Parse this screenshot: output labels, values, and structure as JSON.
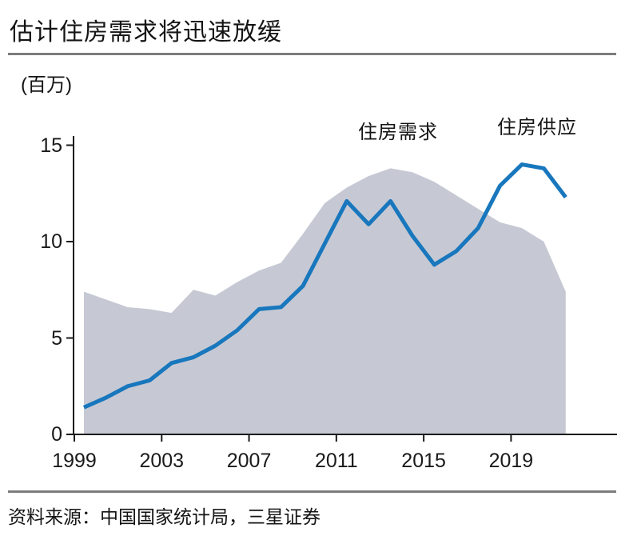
{
  "header": {
    "title": "估计住房需求将迅速放缓"
  },
  "footer": {
    "source": "资料来源：中国国家统计局，三星证券"
  },
  "chart_data": {
    "type": "area+line",
    "title": "估计住房需求将迅速放缓",
    "xlabel": "",
    "ylabel": "(百万)",
    "ylim": [
      0,
      15
    ],
    "yticks": [
      0,
      5,
      10,
      15
    ],
    "xticks": [
      1999,
      2003,
      2007,
      2011,
      2015,
      2019
    ],
    "grid": false,
    "legend_position": "inline-annotations",
    "x": [
      1999,
      2000,
      2001,
      2002,
      2003,
      2004,
      2005,
      2006,
      2007,
      2008,
      2009,
      2010,
      2011,
      2012,
      2013,
      2014,
      2015,
      2016,
      2017,
      2018,
      2019,
      2020,
      2021
    ],
    "series": [
      {
        "name": "住房需求",
        "type": "line",
        "color": "#1877bd",
        "values": [
          1.4,
          1.9,
          2.5,
          2.8,
          3.7,
          4.0,
          4.6,
          5.4,
          6.5,
          6.6,
          7.7,
          9.9,
          12.1,
          10.9,
          12.1,
          10.3,
          8.8,
          9.5,
          10.7,
          12.9,
          14.0,
          13.8,
          12.3
        ]
      },
      {
        "name": "住房供应",
        "type": "area",
        "color": "#c6c9d4",
        "values": [
          7.4,
          7.0,
          6.6,
          6.5,
          6.3,
          7.5,
          7.2,
          7.9,
          8.5,
          8.9,
          10.4,
          12.0,
          12.8,
          13.4,
          13.8,
          13.6,
          13.1,
          12.4,
          11.7,
          11.0,
          10.7,
          10.0,
          7.4
        ]
      }
    ],
    "axis_color": "#1a1a1a"
  }
}
